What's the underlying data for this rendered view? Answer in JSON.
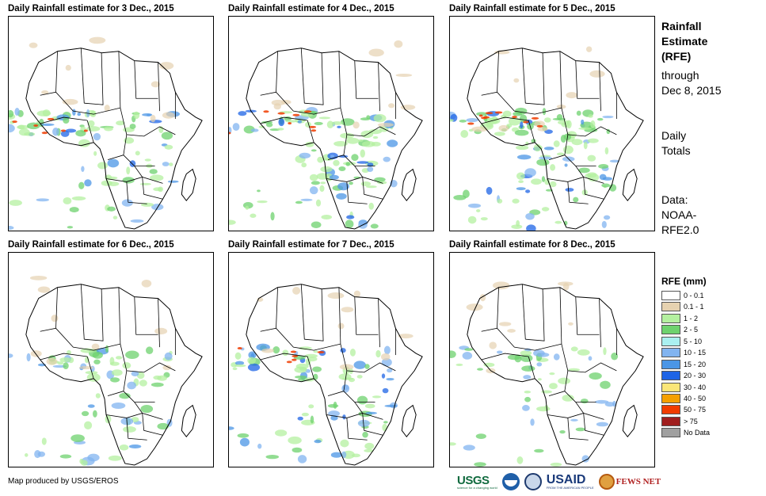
{
  "panels": [
    {
      "title": "Daily Rainfall estimate for 3 Dec., 2015",
      "intensity": 3
    },
    {
      "title": "Daily Rainfall estimate for 4 Dec., 2015",
      "intensity": 4
    },
    {
      "title": "Daily Rainfall estimate for 5 Dec., 2015",
      "intensity": 5
    },
    {
      "title": "Daily Rainfall estimate for 6 Dec., 2015",
      "intensity": 2
    },
    {
      "title": "Daily Rainfall estimate for 7 Dec., 2015",
      "intensity": 3
    },
    {
      "title": "Daily Rainfall estimate for 8 Dec., 2015",
      "intensity": 1
    }
  ],
  "sidebar": {
    "title_line1": "Rainfall",
    "title_line2": "Estimate",
    "title_line3": "(RFE)",
    "through": "through",
    "date": "Dec 8, 2015",
    "totals_line1": "Daily",
    "totals_line2": "Totals",
    "data_line1": "Data:",
    "data_line2": "NOAA-",
    "data_line3": "RFE2.0"
  },
  "legend": {
    "title": "RFE (mm)",
    "items": [
      {
        "label": "0 - 0.1",
        "color": "#ffffff"
      },
      {
        "label": "0.1 - 1",
        "color": "#e6d2b0"
      },
      {
        "label": "1 - 2",
        "color": "#b4f0a0"
      },
      {
        "label": "2 - 5",
        "color": "#6ed26e"
      },
      {
        "label": "5 - 10",
        "color": "#aaf0f0"
      },
      {
        "label": "10 - 15",
        "color": "#82b4f0"
      },
      {
        "label": "15 - 20",
        "color": "#4b96e6"
      },
      {
        "label": "20 - 30",
        "color": "#1e64e6"
      },
      {
        "label": "30 - 40",
        "color": "#fae678"
      },
      {
        "label": "40 - 50",
        "color": "#f5a000"
      },
      {
        "label": "50 - 75",
        "color": "#f03c00"
      },
      {
        "label": "> 75",
        "color": "#a01e1e"
      },
      {
        "label": "No Data",
        "color": "#a0a0a0"
      }
    ]
  },
  "footer": {
    "credit": "Map produced by USGS/EROS"
  },
  "logos": {
    "usgs": "USGS",
    "usgs_tagline": "science for a changing world",
    "usaid": "USAID",
    "usaid_tagline": "FROM THE AMERICAN PEOPLE",
    "fews": "FEWS NET"
  }
}
